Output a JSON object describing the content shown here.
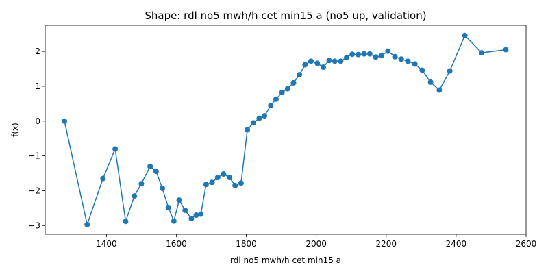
{
  "chart_data": {
    "type": "line",
    "title": "Shape: rdl no5 mwh/h cet min15 a (no5 up, validation)",
    "xlabel": "rdl no5 mwh/h cet min15 a",
    "ylabel": "f(x)",
    "xlim": [
      1225,
      2600
    ],
    "ylim": [
      -3.25,
      2.75
    ],
    "xticks": [
      1400,
      1600,
      1800,
      2000,
      2200,
      2400,
      2600
    ],
    "yticks": [
      -3,
      -2,
      -1,
      0,
      1,
      2
    ],
    "ytick_labels": [
      "−3",
      "−2",
      "−1",
      "0",
      "1",
      "2"
    ],
    "grid": false,
    "series": [
      {
        "color": "#1f77b4",
        "marker": "circle",
        "x": [
          1280,
          1345,
          1390,
          1425,
          1455,
          1480,
          1500,
          1525,
          1542,
          1560,
          1577,
          1593,
          1608,
          1625,
          1643,
          1657,
          1670,
          1685,
          1702,
          1718,
          1735,
          1752,
          1768,
          1785,
          1803,
          1820,
          1837,
          1852,
          1870,
          1885,
          1902,
          1918,
          1935,
          1952,
          1968,
          1985,
          2003,
          2020,
          2037,
          2053,
          2070,
          2087,
          2103,
          2120,
          2137,
          2153,
          2170,
          2187,
          2205,
          2225,
          2243,
          2262,
          2282,
          2303,
          2327,
          2352,
          2382,
          2425,
          2473,
          2542
        ],
        "y": [
          0.0,
          -2.97,
          -1.65,
          -0.8,
          -2.88,
          -2.15,
          -1.8,
          -1.3,
          -1.44,
          -1.93,
          -2.48,
          -2.87,
          -2.27,
          -2.56,
          -2.8,
          -2.7,
          -2.67,
          -1.82,
          -1.76,
          -1.62,
          -1.52,
          -1.62,
          -1.85,
          -1.78,
          -0.25,
          -0.05,
          0.08,
          0.15,
          0.45,
          0.63,
          0.82,
          0.93,
          1.1,
          1.33,
          1.62,
          1.72,
          1.66,
          1.55,
          1.74,
          1.72,
          1.72,
          1.83,
          1.92,
          1.91,
          1.93,
          1.93,
          1.84,
          1.88,
          2.01,
          1.85,
          1.78,
          1.72,
          1.64,
          1.46,
          1.12,
          0.89,
          1.44,
          2.46,
          1.96,
          2.05
        ]
      }
    ]
  }
}
